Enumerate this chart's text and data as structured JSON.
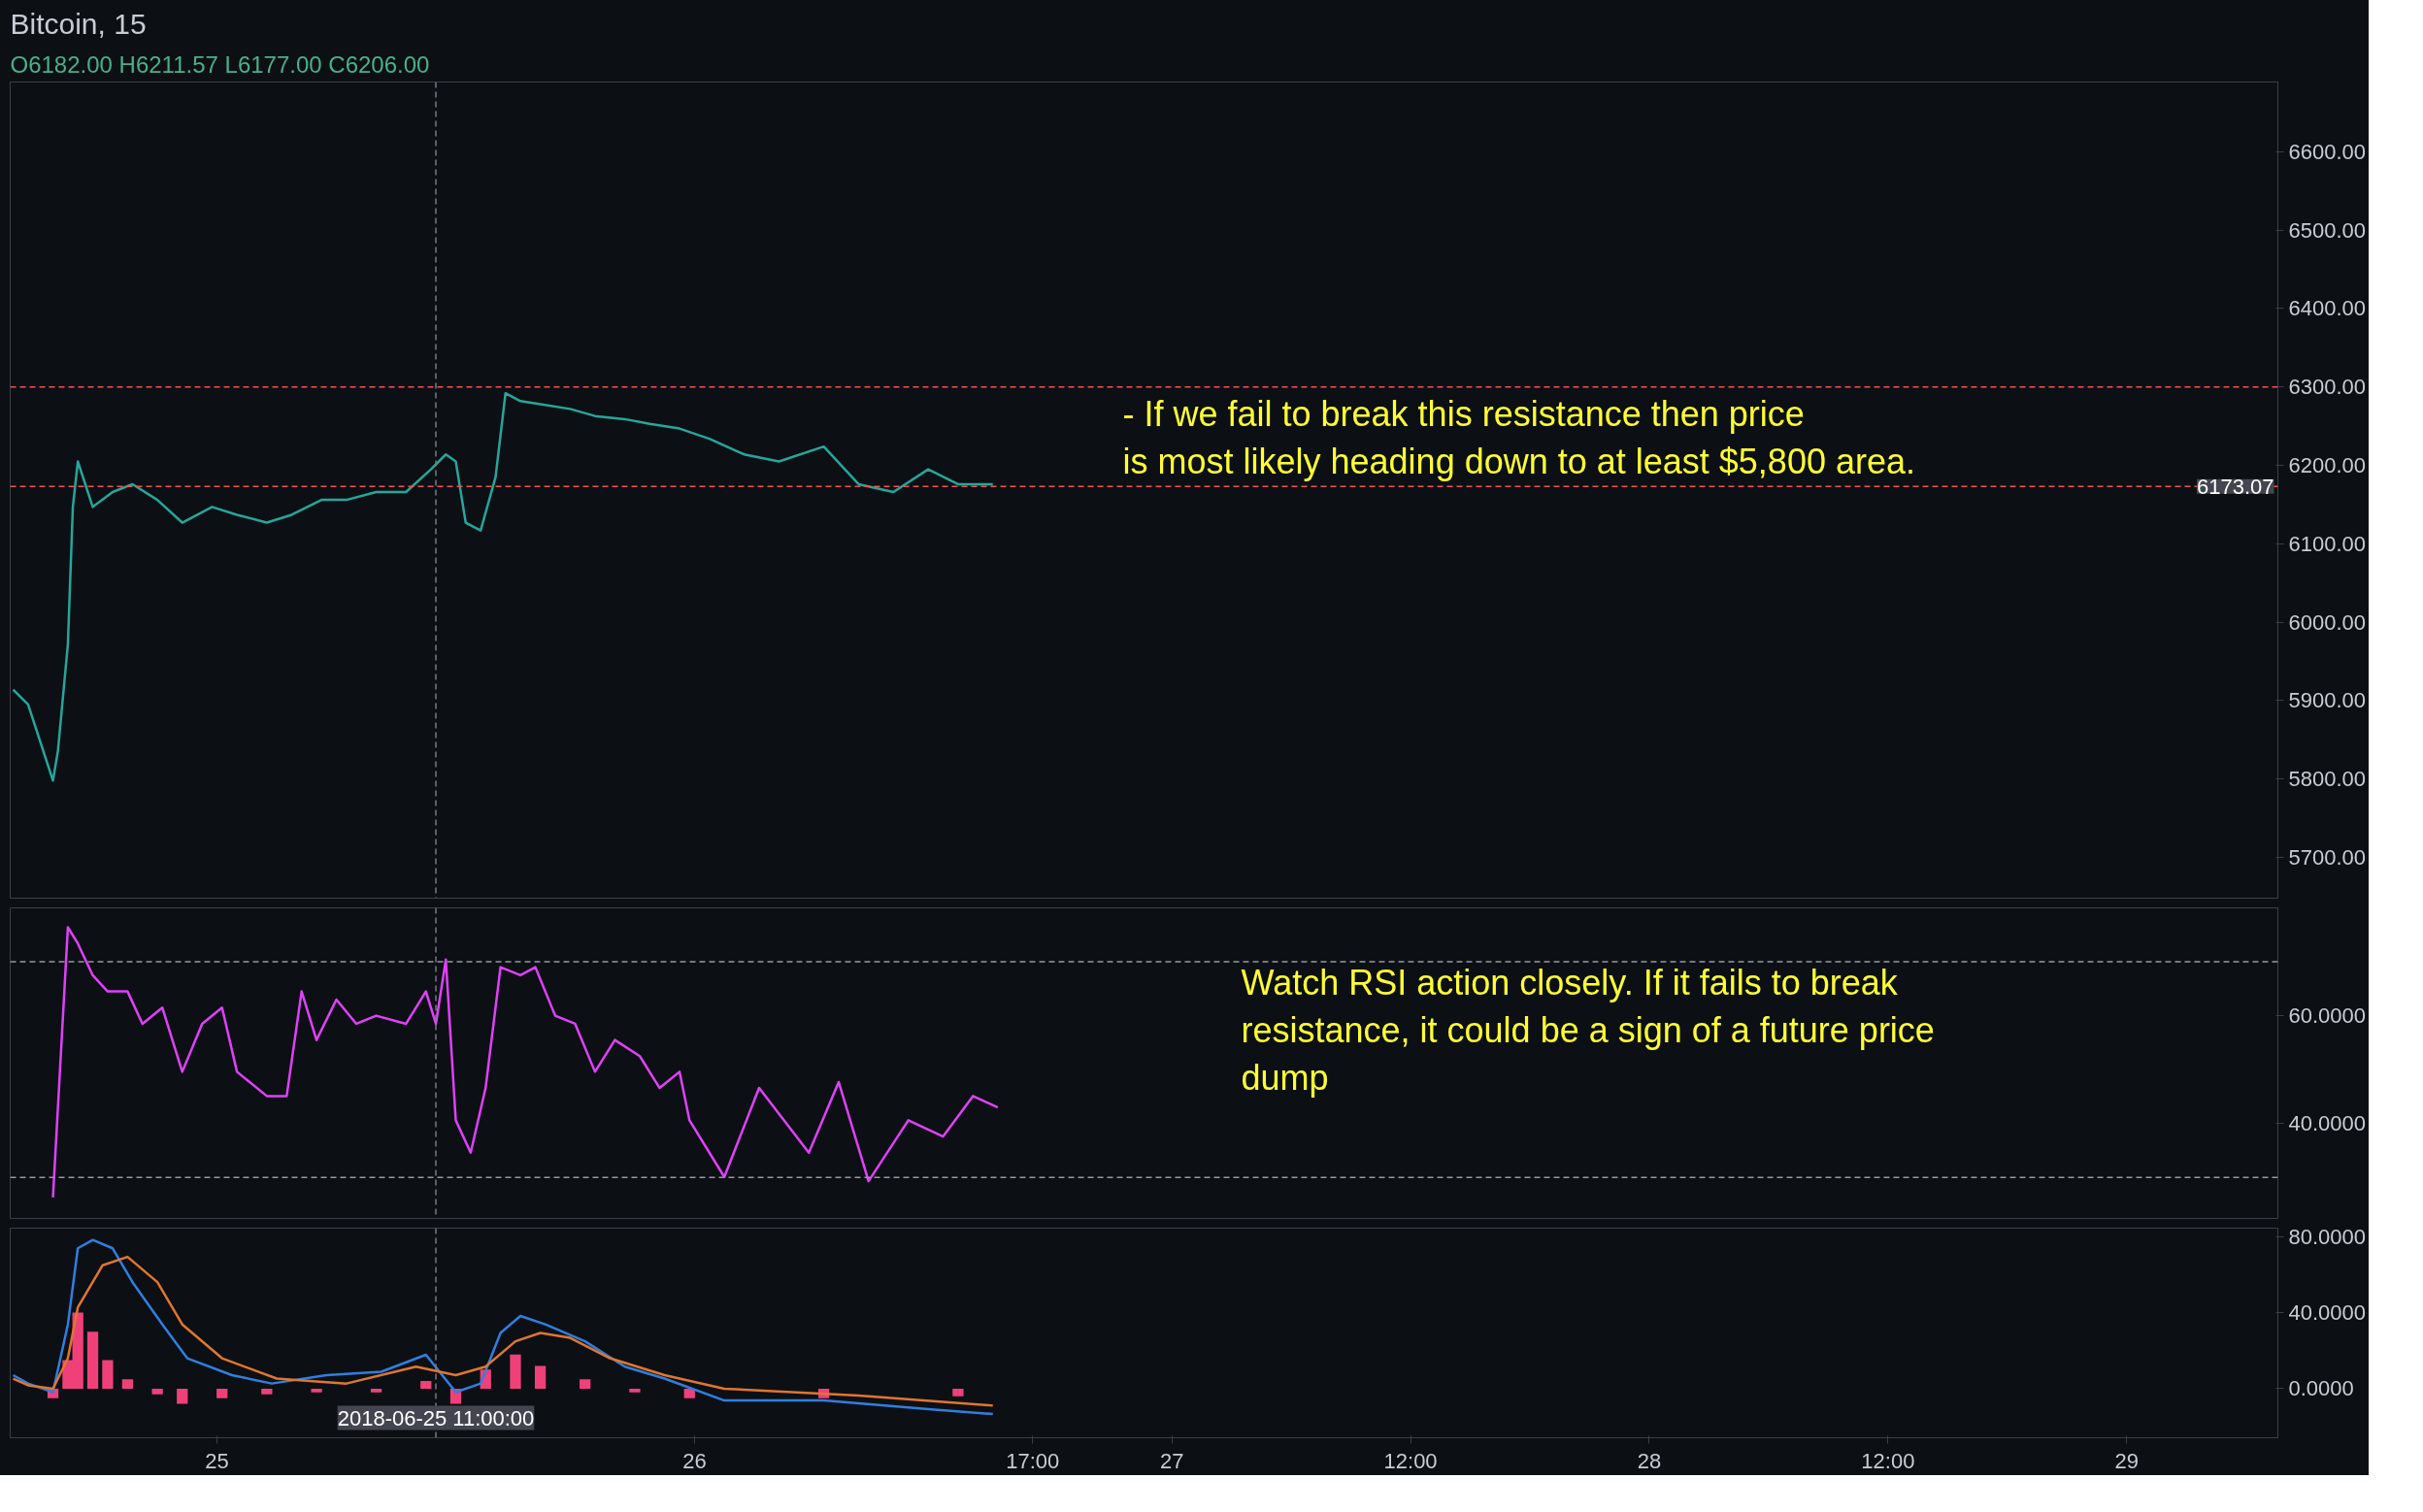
{
  "chart_data": [
    {
      "type": "line",
      "title": "Bitcoin, 15",
      "subtitle": "O6182.00 H6211.57 L6177.00 C6206.00",
      "x": [
        "2018-06-24T13:45",
        "2018-06-24T14:30",
        "2018-06-24T15:45",
        "2018-06-24T16:00",
        "2018-06-24T16:30",
        "2018-06-24T16:45",
        "2018-06-24T17:00",
        "2018-06-24T17:45",
        "2018-06-24T18:45",
        "2018-06-24T19:45",
        "2018-06-24T21:00",
        "2018-06-24T22:15",
        "2018-06-24T23:45",
        "2018-06-25T01:00",
        "2018-06-25T02:30",
        "2018-06-25T03:45",
        "2018-06-25T05:15",
        "2018-06-25T06:30",
        "2018-06-25T08:00",
        "2018-06-25T09:30",
        "2018-06-25T10:45",
        "2018-06-25T11:30",
        "2018-06-25T12:00",
        "2018-06-25T12:30",
        "2018-06-25T13:15",
        "2018-06-25T14:00",
        "2018-06-25T14:30",
        "2018-06-25T15:15",
        "2018-06-25T16:15",
        "2018-06-25T17:45",
        "2018-06-25T19:00",
        "2018-06-25T20:30",
        "2018-06-25T21:45",
        "2018-06-25T23:15",
        "2018-06-26T00:45",
        "2018-06-26T02:30",
        "2018-06-26T04:15",
        "2018-06-26T06:30",
        "2018-06-26T08:15",
        "2018-06-26T10:00",
        "2018-06-26T11:45",
        "2018-06-26T13:15",
        "2018-06-26T15:00"
      ],
      "series": [
        {
          "color": "#26a69a",
          "values": [
            5914,
            5895,
            5798,
            5836,
            5972,
            6147,
            6205,
            6147,
            6166,
            6176,
            6156,
            6127,
            6147,
            6137,
            6127,
            6137,
            6156,
            6156,
            6166,
            6166,
            6195,
            6214,
            6205,
            6127,
            6117,
            6185,
            6292,
            6282,
            6278,
            6272,
            6263,
            6259,
            6253,
            6247,
            6234,
            6214,
            6205,
            6224,
            6176,
            6166,
            6195,
            6176,
            6176
          ]
        }
      ],
      "xlim": [
        "2018-06-24T13:36",
        "2018-06-29T07:36"
      ],
      "ylim": [
        5648,
        6689
      ],
      "yticks": [
        {
          "value": 5700,
          "label": "5700.00"
        },
        {
          "value": 5800,
          "label": "5800.00"
        },
        {
          "value": 5900,
          "label": "5900.00"
        },
        {
          "value": 6000,
          "label": "6000.00"
        },
        {
          "value": 6100,
          "label": "6100.00"
        },
        {
          "value": 6200,
          "label": "6200.00"
        },
        {
          "value": 6300,
          "label": "6300.00"
        },
        {
          "value": 6400,
          "label": "6400.00"
        },
        {
          "value": 6500,
          "label": "6500.00"
        },
        {
          "value": 6600,
          "label": "6600.00"
        }
      ],
      "ref_lines": [
        {
          "axis": "y",
          "value": 6300,
          "color": "#ef5350",
          "line_style": "dashed"
        },
        {
          "axis": "y",
          "value": 6173.07,
          "label": "6173.07",
          "color": "#ef5350",
          "line_style": "dashed"
        },
        {
          "axis": "x",
          "value": "2018-06-25T11:00",
          "color": "#787b86",
          "line_style": "dashed"
        }
      ],
      "annotations": [
        "- If we fail to break this resistance then price\nis most likely heading down to at least $5,800 area."
      ],
      "tick_labels": "y"
    },
    {
      "type": "line",
      "x": [
        "2018-06-24T15:45",
        "2018-06-24T16:30",
        "2018-06-24T17:00",
        "2018-06-24T17:45",
        "2018-06-24T18:30",
        "2018-06-24T19:30",
        "2018-06-24T20:15",
        "2018-06-24T21:15",
        "2018-06-24T22:15",
        "2018-06-24T23:15",
        "2018-06-25T00:15",
        "2018-06-25T01:00",
        "2018-06-25T02:30",
        "2018-06-25T03:30",
        "2018-06-25T04:15",
        "2018-06-25T05:00",
        "2018-06-25T06:00",
        "2018-06-25T07:00",
        "2018-06-25T08:00",
        "2018-06-25T09:30",
        "2018-06-25T10:30",
        "2018-06-25T11:00",
        "2018-06-25T11:30",
        "2018-06-25T12:00",
        "2018-06-25T12:45",
        "2018-06-25T13:30",
        "2018-06-25T14:15",
        "2018-06-25T15:15",
        "2018-06-25T16:00",
        "2018-06-25T17:00",
        "2018-06-25T18:00",
        "2018-06-25T19:00",
        "2018-06-25T20:00",
        "2018-06-25T21:15",
        "2018-06-25T22:15",
        "2018-06-25T23:15",
        "2018-06-25T23:45",
        "2018-06-26T01:30",
        "2018-06-26T03:15",
        "2018-06-26T05:45",
        "2018-06-26T07:15",
        "2018-06-26T08:45",
        "2018-06-26T10:45",
        "2018-06-26T12:30",
        "2018-06-26T14:00",
        "2018-06-26T15:15"
      ],
      "series": [
        {
          "color": "#e040fb",
          "values": [
            26.3,
            76.4,
            73.4,
            67.5,
            64.5,
            64.5,
            58.5,
            61.5,
            49.6,
            58.5,
            61.5,
            49.6,
            45.1,
            45.1,
            64.5,
            55.5,
            63,
            58.5,
            60,
            58.5,
            64.5,
            58.5,
            70.4,
            40.6,
            34.6,
            46.6,
            69,
            67.5,
            69,
            60,
            58.5,
            49.6,
            55.5,
            52.5,
            46.6,
            49.6,
            40.6,
            30.1,
            46.6,
            34.6,
            47.7,
            29.3,
            40.6,
            37.6,
            45.1,
            43
          ]
        }
      ],
      "xlim": [
        "2018-06-24T13:36",
        "2018-06-29T07:36"
      ],
      "ylim": [
        22.4,
        80
      ],
      "yticks": [
        {
          "value": 40,
          "label": "40.0000"
        },
        {
          "value": 60,
          "label": "60.0000"
        }
      ],
      "ref_lines": [
        {
          "axis": "y",
          "value": 70,
          "color": "#9598a1",
          "line_style": "dashed"
        },
        {
          "axis": "y",
          "value": 30,
          "color": "#9598a1",
          "line_style": "dashed"
        },
        {
          "axis": "x",
          "value": "2018-06-25T11:00",
          "color": "#787b86",
          "line_style": "dashed"
        }
      ],
      "annotations": [
        "Watch RSI action closely. If it fails to break\nresistance, it could be a sign of a future price\ndump"
      ],
      "tick_labels": "y"
    },
    {
      "type": "line",
      "xlim": [
        "2018-06-24T13:36",
        "2018-06-29T07:36"
      ],
      "xticks": [
        {
          "value": "2018-06-25",
          "label": "25"
        },
        {
          "value": "2018-06-26",
          "label": "26"
        },
        {
          "value": "2018-06-26T17:00",
          "label": "17:00"
        },
        {
          "value": "2018-06-27",
          "label": "27"
        },
        {
          "value": "2018-06-27T12:00",
          "label": "12:00"
        },
        {
          "value": "2018-06-28",
          "label": "28"
        },
        {
          "value": "2018-06-28T12:00",
          "label": "12:00"
        },
        {
          "value": "2018-06-29",
          "label": "29"
        }
      ],
      "ylim": [
        -25.8,
        84.4
      ],
      "yticks": [
        {
          "value": 0,
          "label": "0.0000"
        },
        {
          "value": 40,
          "label": "40.0000"
        },
        {
          "value": 80,
          "label": "80.0000"
        }
      ],
      "series": [
        {
          "type": "bar",
          "color": "#f0407a",
          "x": [
            "2018-06-24T15:45",
            "2018-06-24T16:30",
            "2018-06-24T17:00",
            "2018-06-24T17:45",
            "2018-06-24T18:30",
            "2018-06-24T19:30",
            "2018-06-24T21:00",
            "2018-06-24T22:15",
            "2018-06-25T00:15",
            "2018-06-25T02:30",
            "2018-06-25T05:00",
            "2018-06-25T08:00",
            "2018-06-25T10:30",
            "2018-06-25T12:00",
            "2018-06-25T13:30",
            "2018-06-25T15:00",
            "2018-06-25T16:15",
            "2018-06-25T18:30",
            "2018-06-25T21:00",
            "2018-06-25T23:45",
            "2018-06-26T06:30",
            "2018-06-26T13:15"
          ],
          "values": [
            -5,
            15,
            40,
            30,
            15,
            5,
            -3,
            -8,
            -5,
            -3,
            -2,
            -2,
            4,
            -8,
            10,
            18,
            12,
            5,
            -2,
            -5,
            -5,
            -4
          ]
        },
        {
          "type": "line",
          "color": "#2f7fe0",
          "x": [
            "2018-06-24T13:45",
            "2018-06-24T14:30",
            "2018-06-24T15:45",
            "2018-06-24T16:30",
            "2018-06-24T17:00",
            "2018-06-24T17:45",
            "2018-06-24T18:45",
            "2018-06-24T19:45",
            "2018-06-24T21:15",
            "2018-06-24T22:30",
            "2018-06-25T00:45",
            "2018-06-25T02:45",
            "2018-06-25T05:30",
            "2018-06-25T08:15",
            "2018-06-25T10:30",
            "2018-06-25T12:00",
            "2018-06-25T13:15",
            "2018-06-25T14:15",
            "2018-06-25T15:15",
            "2018-06-25T16:30",
            "2018-06-25T18:30",
            "2018-06-25T20:30",
            "2018-06-25T22:30",
            "2018-06-26T01:30",
            "2018-06-26T06:30",
            "2018-06-26T11:45",
            "2018-06-26T15:00"
          ],
          "values": [
            7.1,
            2.7,
            -1.8,
            33.8,
            73.8,
            78.2,
            73.8,
            56,
            33.8,
            16,
            7.1,
            2.7,
            7.1,
            8.9,
            17.8,
            -1.8,
            2.7,
            29.3,
            38.2,
            33.8,
            24.9,
            11.6,
            5.3,
            -6.2,
            -6.2,
            -10.7,
            -13.3
          ]
        },
        {
          "type": "line",
          "color": "#e0762f",
          "x": [
            "2018-06-24T13:45",
            "2018-06-24T14:30",
            "2018-06-24T15:45",
            "2018-06-24T16:30",
            "2018-06-24T17:00",
            "2018-06-24T18:15",
            "2018-06-24T19:30",
            "2018-06-24T21:00",
            "2018-06-24T22:15",
            "2018-06-25T00:15",
            "2018-06-25T03:00",
            "2018-06-25T06:30",
            "2018-06-25T10:00",
            "2018-06-25T12:00",
            "2018-06-25T13:30",
            "2018-06-25T15:00",
            "2018-06-25T16:15",
            "2018-06-25T17:45",
            "2018-06-25T19:45",
            "2018-06-25T22:30",
            "2018-06-26T01:30",
            "2018-06-26T08:15",
            "2018-06-26T15:00"
          ],
          "values": [
            5.3,
            1.8,
            0,
            16,
            42.7,
            64.9,
            69.3,
            56,
            33.8,
            16,
            5.3,
            2.7,
            11.6,
            7.1,
            11.6,
            24.9,
            29.3,
            26.7,
            16,
            7.1,
            0,
            -3.6,
            -8.9
          ]
        }
      ],
      "ref_lines": [
        {
          "axis": "x",
          "value": "2018-06-25T11:00",
          "label": "2018-06-25 11:00:00",
          "color": "#787b86",
          "line_style": "dashed"
        }
      ]
    }
  ]
}
